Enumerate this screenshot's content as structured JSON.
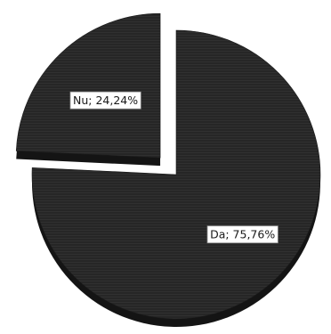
{
  "chart_data": {
    "type": "pie",
    "slices": [
      {
        "label": "Nu; 24,24%",
        "value": 24.24,
        "exploded": true
      },
      {
        "label": "Da; 75,76%",
        "value": 75.76,
        "exploded": false
      }
    ],
    "style": "3d-exploded",
    "colors": {
      "top": "#262626",
      "side": "#141414",
      "texture": "#3a3a3a"
    },
    "title": "",
    "legend": "none"
  }
}
